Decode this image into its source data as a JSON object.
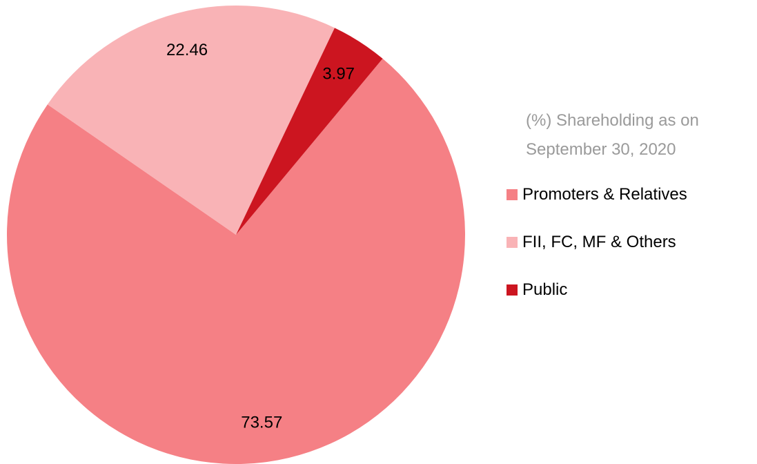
{
  "chart_data": {
    "type": "pie",
    "title": "(%) Shareholding as on September 30, 2020",
    "categories": [
      "Promoters & Relatives",
      "FII, FC, MF & Others",
      "Public"
    ],
    "values": [
      73.57,
      22.46,
      3.97
    ],
    "colors": [
      "#f58085",
      "#f9b3b6",
      "#cc1520"
    ]
  }
}
